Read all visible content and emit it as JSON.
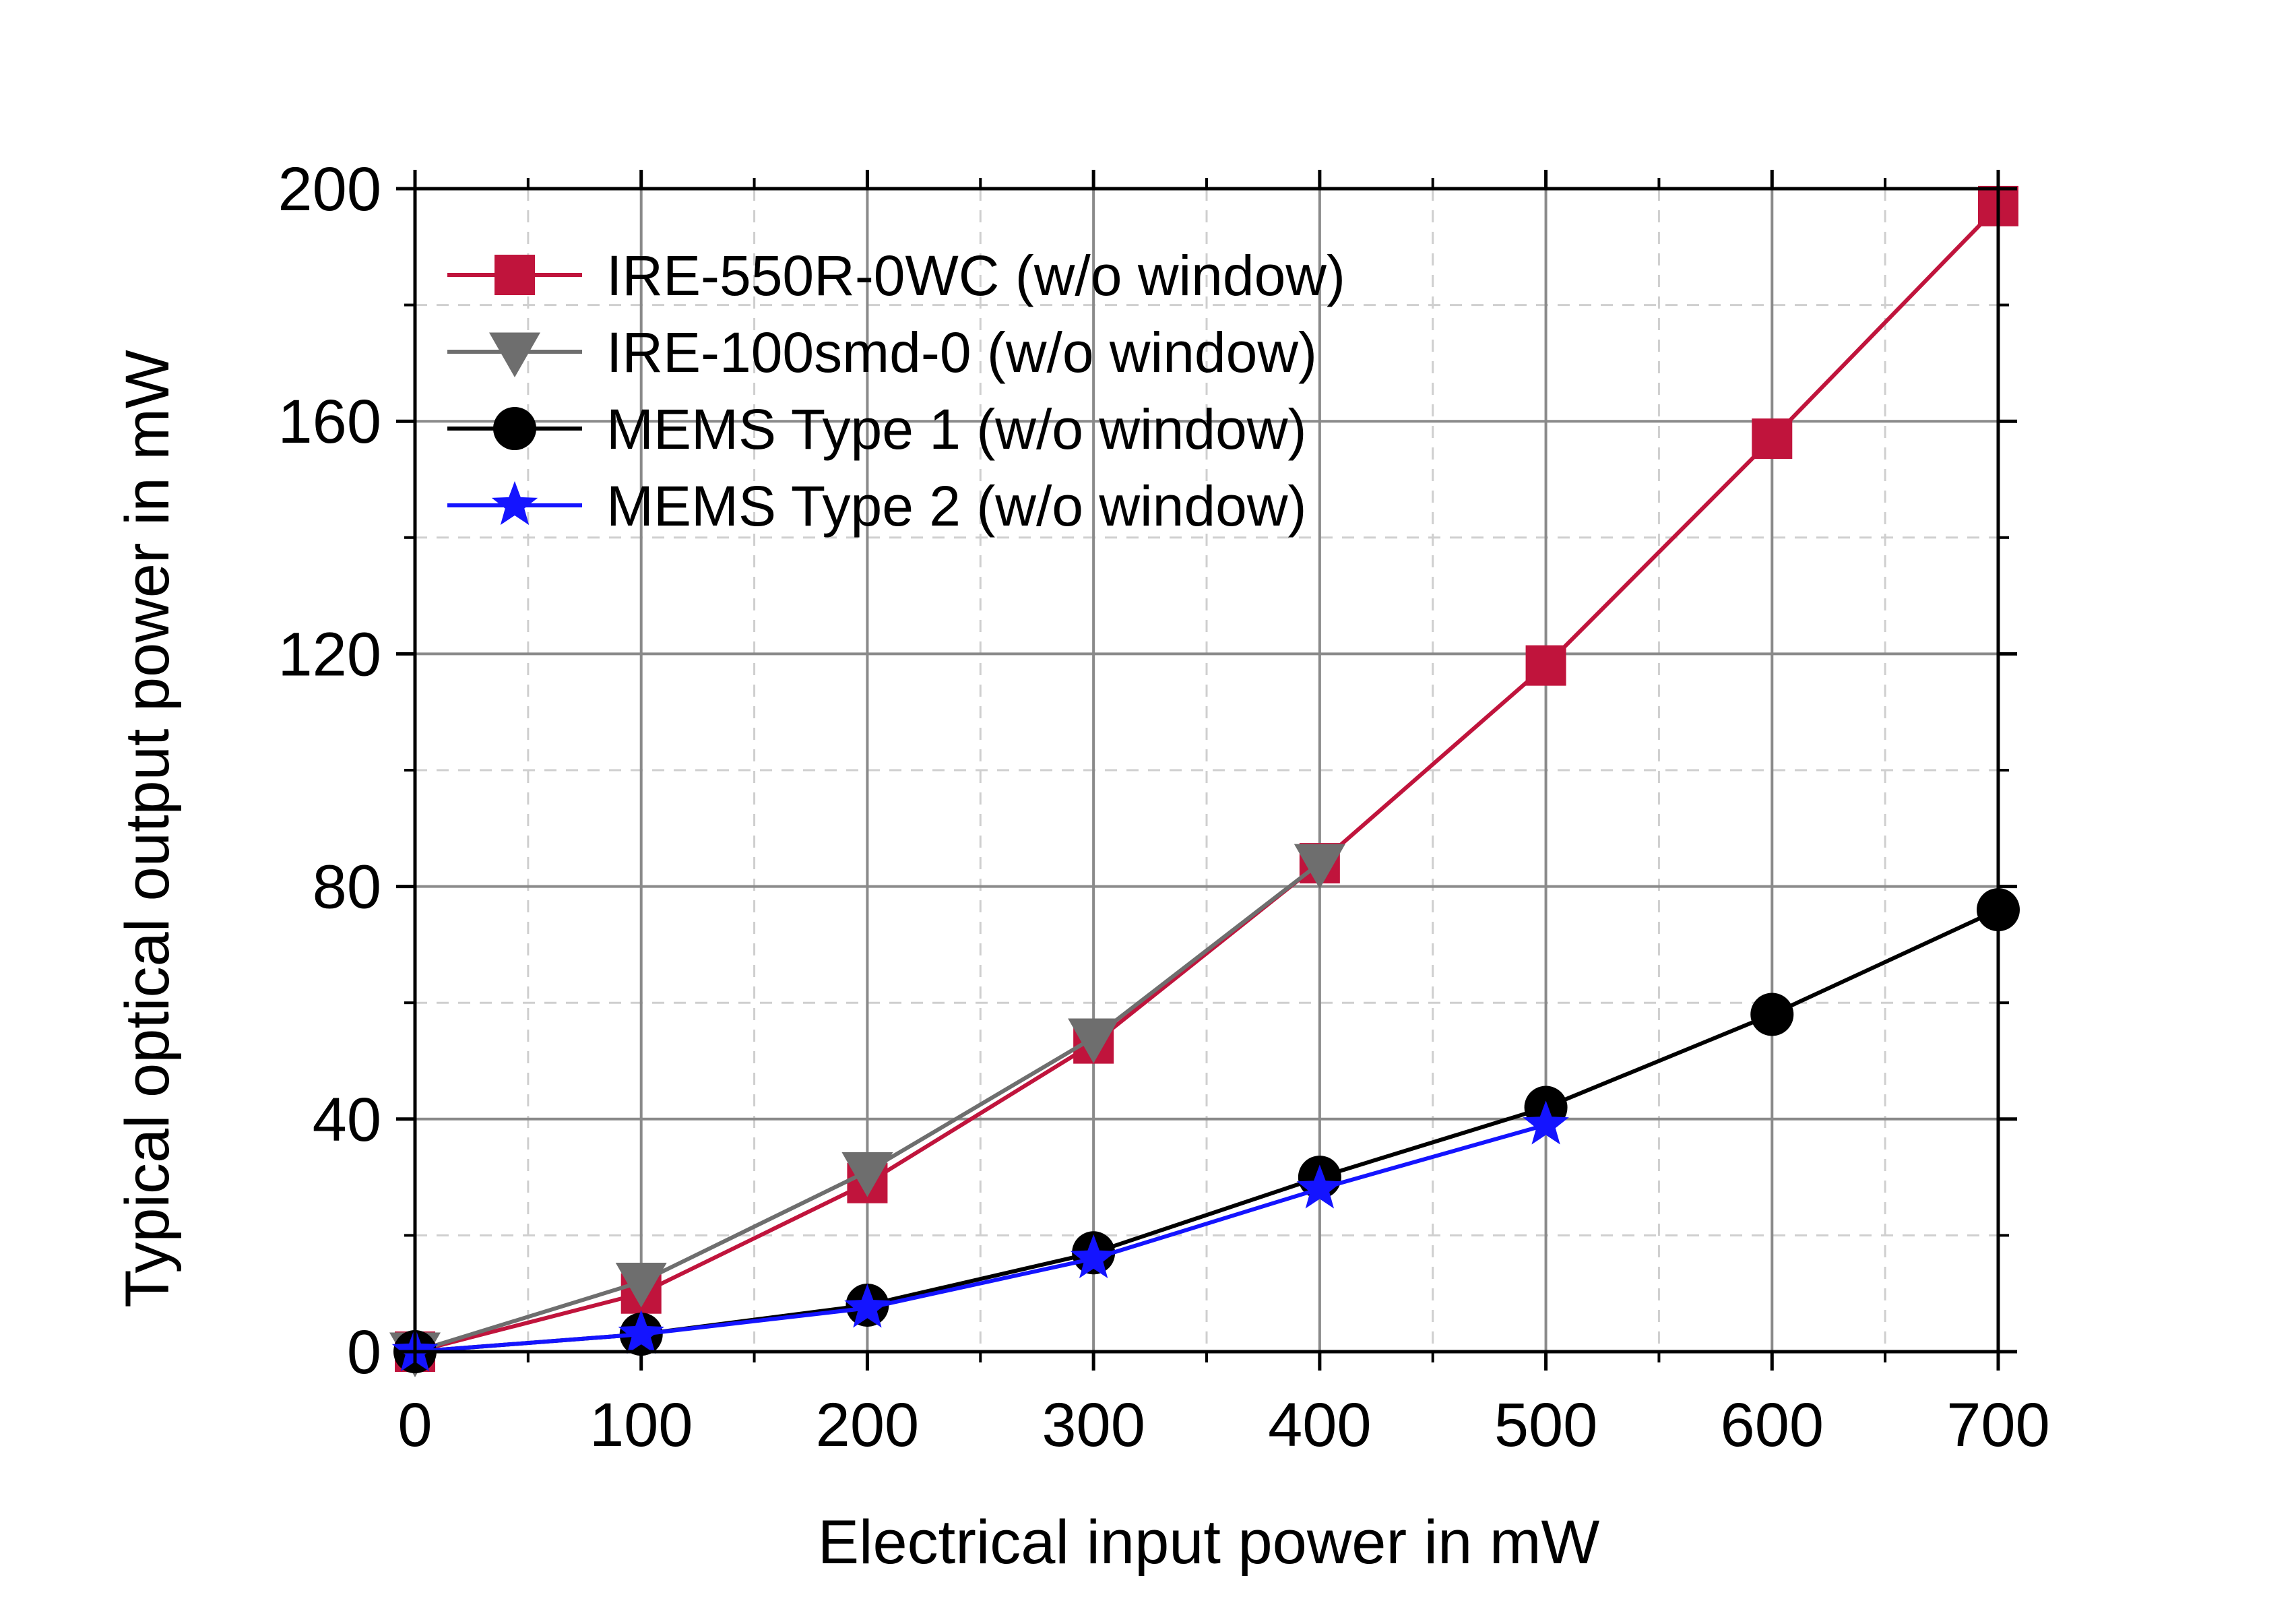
{
  "chart_data": {
    "type": "line",
    "title": "",
    "xlabel": "Electrical input power in mW",
    "ylabel": "Typical optical output power in mW",
    "xlim": [
      0,
      700
    ],
    "ylim": [
      0,
      200
    ],
    "xticks": [
      0,
      100,
      200,
      300,
      400,
      500,
      600,
      700
    ],
    "yticks": [
      0,
      40,
      80,
      120,
      160,
      200
    ],
    "grid": true,
    "legend_position": "top-left",
    "series": [
      {
        "name": "IRE-550R-0WC (w/o window)",
        "color": "#c0143c",
        "marker": "square",
        "x": [
          0,
          100,
          200,
          300,
          400,
          500,
          600,
          700
        ],
        "y": [
          0,
          10,
          29,
          53,
          84,
          118,
          157,
          197
        ]
      },
      {
        "name": "IRE-100smd-0 (w/o window)",
        "color": "#6e6e6e",
        "marker": "triangle-down",
        "x": [
          0,
          100,
          200,
          300,
          400
        ],
        "y": [
          0,
          12,
          31,
          54,
          84
        ]
      },
      {
        "name": "MEMS Type 1 (w/o window)",
        "color": "#000000",
        "marker": "circle",
        "x": [
          0,
          100,
          200,
          300,
          400,
          500,
          600,
          700
        ],
        "y": [
          0,
          3,
          8,
          17,
          30,
          42,
          58,
          76
        ]
      },
      {
        "name": "MEMS Type 2 (w/o window)",
        "color": "#1414ff",
        "marker": "star",
        "x": [
          0,
          100,
          200,
          300,
          400,
          500
        ],
        "y": [
          0,
          3,
          7.5,
          16,
          28,
          39
        ]
      }
    ]
  }
}
